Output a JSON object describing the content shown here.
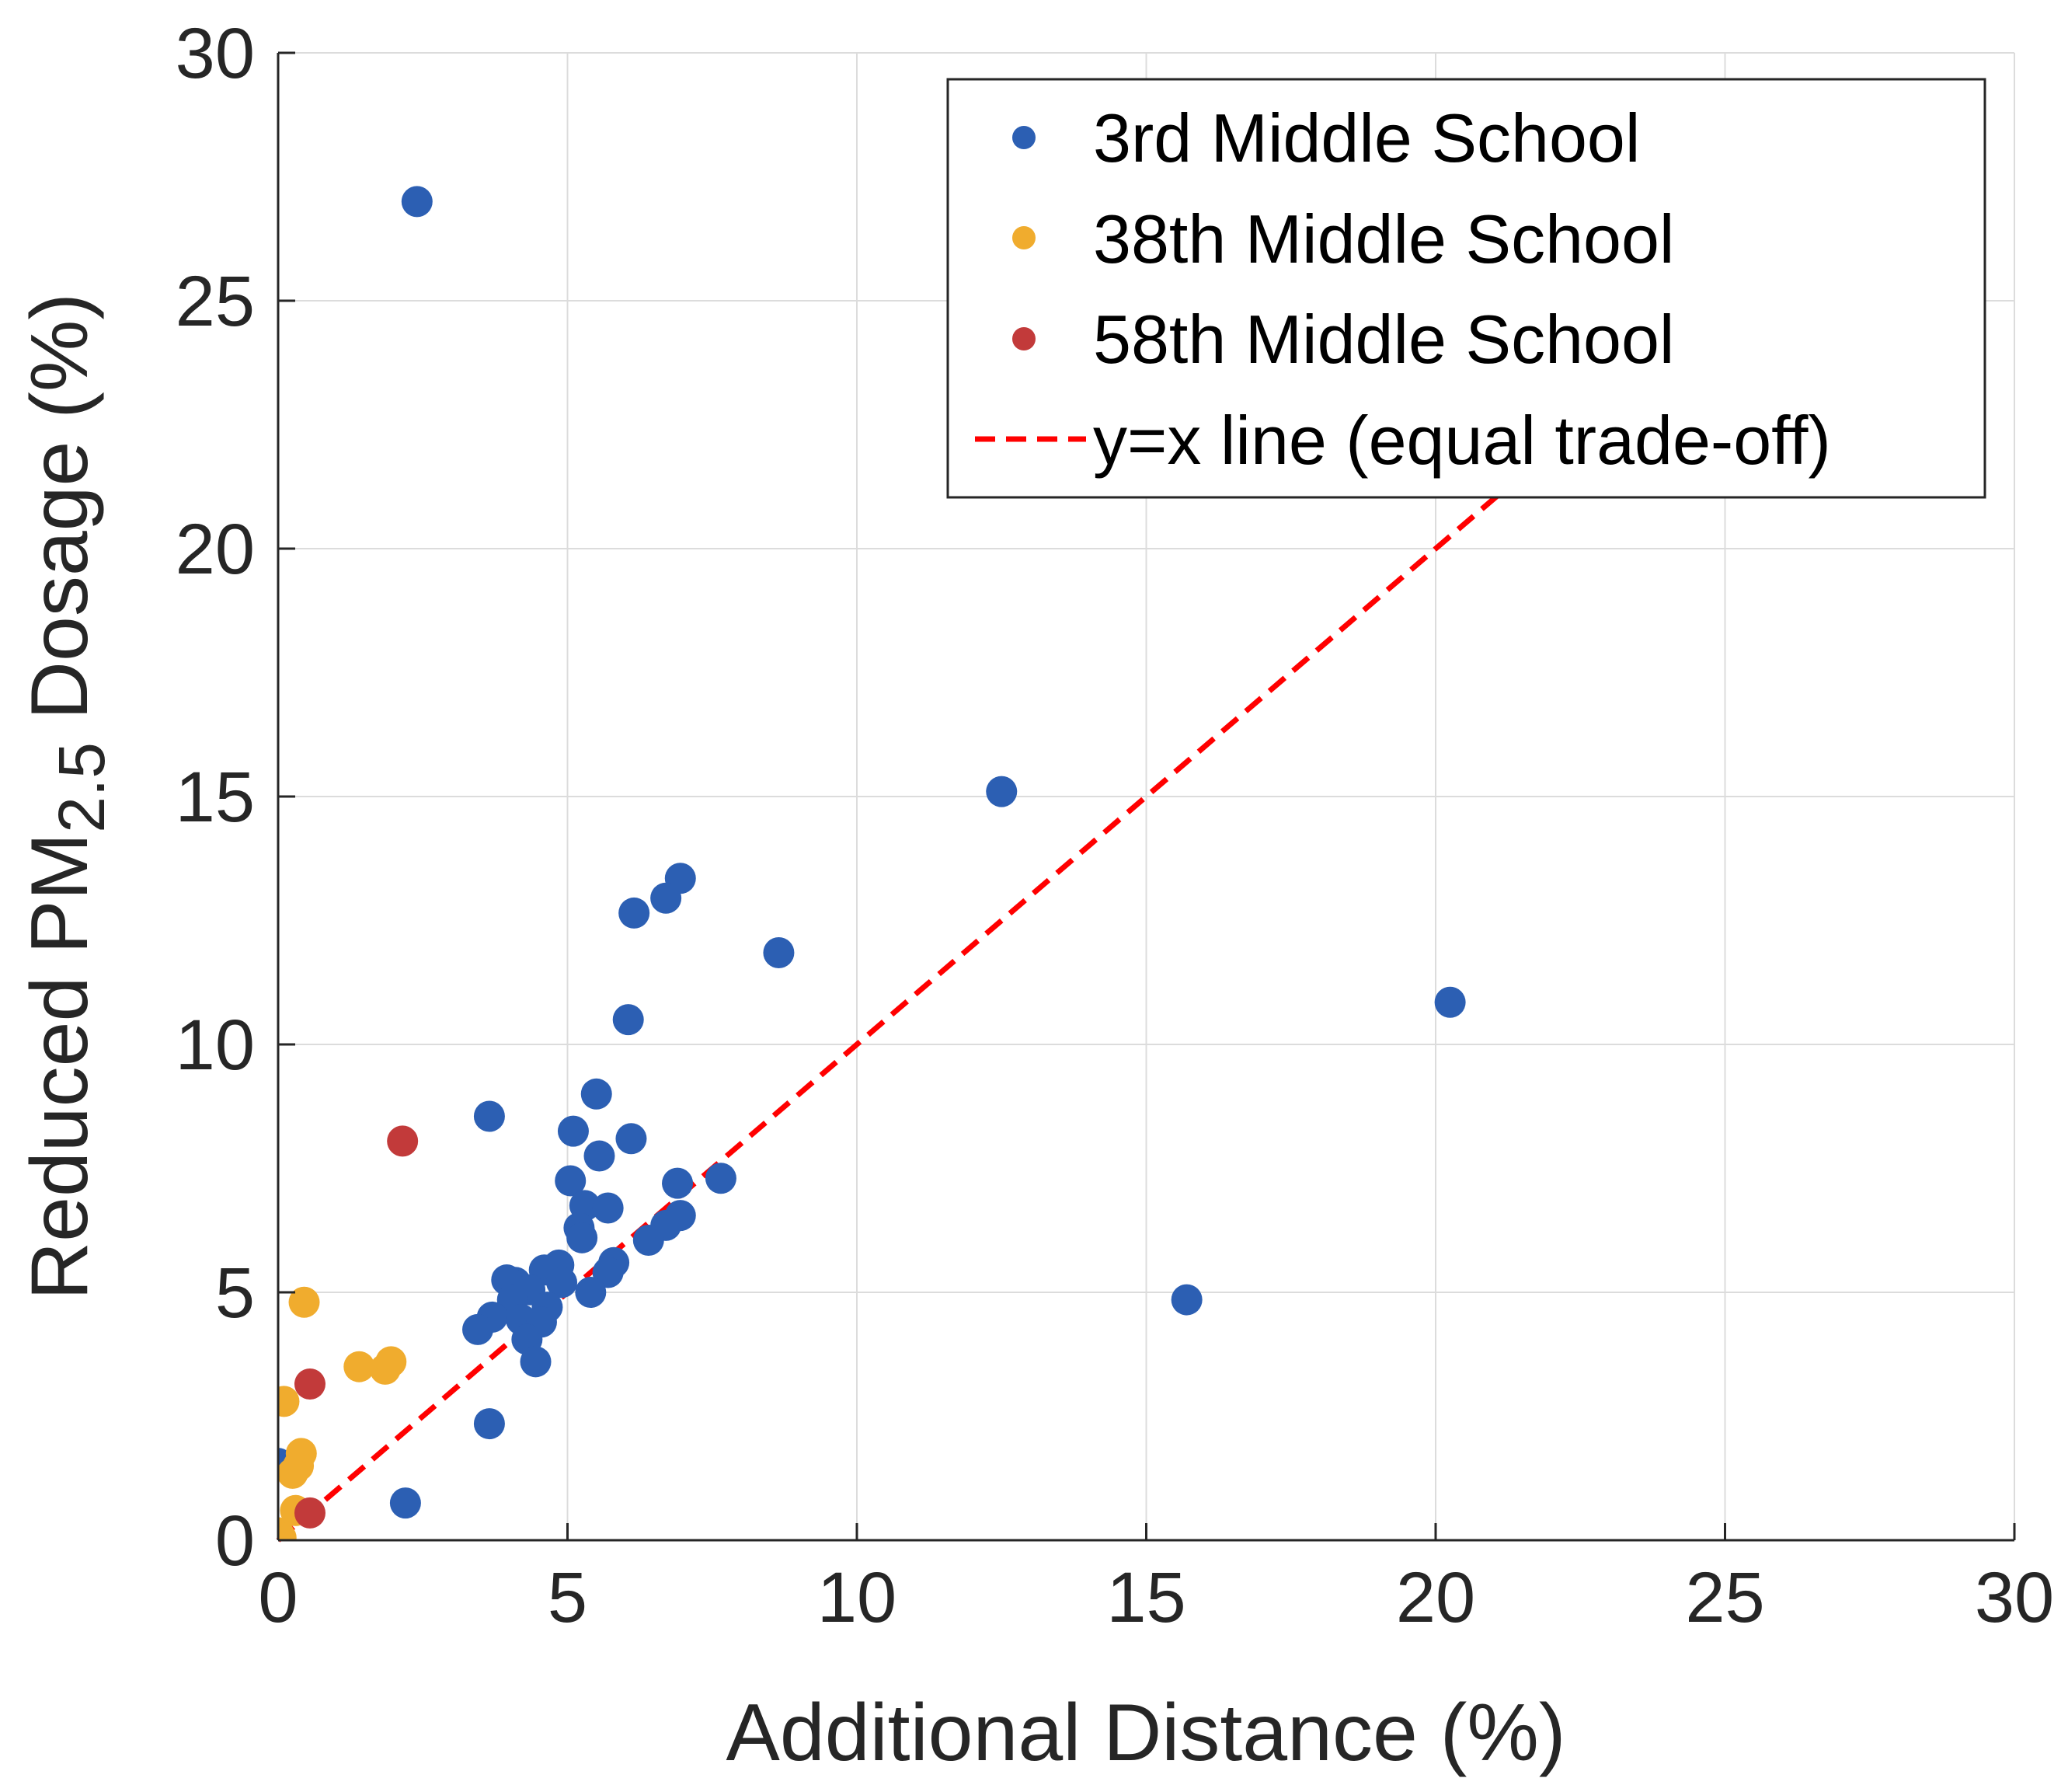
{
  "chart_data": {
    "type": "scatter",
    "title": "",
    "xlabel": "Additional Distance (%)",
    "ylabel": {
      "prefix": "Reduced PM",
      "subscript": "2.5",
      "suffix": " Dosage (%)"
    },
    "xlim": [
      0,
      30
    ],
    "ylim": [
      0,
      30
    ],
    "xticks": [
      "0",
      "5",
      "10",
      "15",
      "20",
      "25",
      "30"
    ],
    "yticks": [
      "0",
      "5",
      "10",
      "15",
      "20",
      "25",
      "30"
    ],
    "grid": true,
    "legend_position": "top-right",
    "series": [
      {
        "name": "3rd Middle School",
        "color": "#2c5fb3",
        "points": [
          [
            2.4,
            27.0
          ],
          [
            12.5,
            15.1
          ],
          [
            6.95,
            13.35
          ],
          [
            6.7,
            12.95
          ],
          [
            6.15,
            12.65
          ],
          [
            8.65,
            11.85
          ],
          [
            20.25,
            10.85
          ],
          [
            6.05,
            10.5
          ],
          [
            5.5,
            9.0
          ],
          [
            3.65,
            8.55
          ],
          [
            5.1,
            8.25
          ],
          [
            6.1,
            8.1
          ],
          [
            5.55,
            7.75
          ],
          [
            5.05,
            7.25
          ],
          [
            6.9,
            7.2
          ],
          [
            7.65,
            7.3
          ],
          [
            5.3,
            6.75
          ],
          [
            5.7,
            6.7
          ],
          [
            6.95,
            6.55
          ],
          [
            6.7,
            6.35
          ],
          [
            5.2,
            6.3
          ],
          [
            5.25,
            6.1
          ],
          [
            6.4,
            6.05
          ],
          [
            5.8,
            5.6
          ],
          [
            5.7,
            5.4
          ],
          [
            4.85,
            5.55
          ],
          [
            4.6,
            5.45
          ],
          [
            4.9,
            5.2
          ],
          [
            5.4,
            5.0
          ],
          [
            4.1,
            5.2
          ],
          [
            3.95,
            5.25
          ],
          [
            4.35,
            5.05
          ],
          [
            4.05,
            4.85
          ],
          [
            4.65,
            4.7
          ],
          [
            3.7,
            4.5
          ],
          [
            3.45,
            4.25
          ],
          [
            4.2,
            4.45
          ],
          [
            4.55,
            4.4
          ],
          [
            4.3,
            4.05
          ],
          [
            4.45,
            3.6
          ],
          [
            15.7,
            4.85
          ],
          [
            3.65,
            2.35
          ],
          [
            2.2,
            0.75
          ],
          [
            0.0,
            1.55
          ]
        ]
      },
      {
        "name": "38th Middle School",
        "color": "#f0ac2e",
        "points": [
          [
            0.45,
            4.8
          ],
          [
            1.4,
            3.5
          ],
          [
            1.85,
            3.45
          ],
          [
            1.95,
            3.6
          ],
          [
            0.1,
            2.8
          ],
          [
            0.4,
            1.75
          ],
          [
            0.35,
            1.5
          ],
          [
            0.25,
            1.35
          ],
          [
            0.3,
            0.6
          ],
          [
            0.0,
            0.15
          ],
          [
            0.05,
            0.05
          ]
        ]
      },
      {
        "name": "58th Middle School",
        "color": "#c23a3a",
        "points": [
          [
            2.15,
            8.05
          ],
          [
            0.55,
            3.15
          ],
          [
            0.55,
            0.55
          ]
        ]
      }
    ],
    "reference_line": {
      "name": "y=x line (equal trade-off)",
      "color": "#ff0000",
      "style": "dashed",
      "from": [
        0,
        0
      ],
      "to": [
        21.4,
        21.4
      ]
    }
  }
}
